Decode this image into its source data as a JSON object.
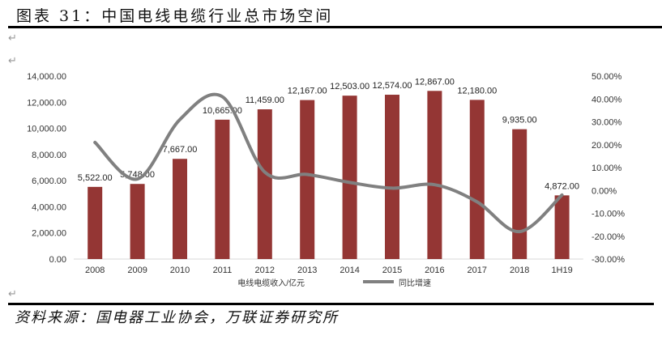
{
  "title": "图表 31：中国电线电缆行业总市场空间",
  "source": "资料来源：国电器工业协会，万联证券研究所",
  "chart_data": {
    "type": "bar+line",
    "categories": [
      "2008",
      "2009",
      "2010",
      "2011",
      "2012",
      "2013",
      "2014",
      "2015",
      "2016",
      "2017",
      "2018",
      "1H19"
    ],
    "series": [
      {
        "name": "电线电缆收入/亿元",
        "type": "bar",
        "axis": "left",
        "color": "#943634",
        "values": [
          5522,
          5748,
          7667,
          10665,
          11459,
          12167,
          12503,
          12574,
          12867,
          12180,
          9935,
          4872
        ],
        "labels": [
          "5,522.00",
          "5,748.00",
          "7,667.00",
          "10,665.00",
          "11,459.00",
          "12,167.00",
          "12,503.00",
          "12,574.00",
          "12,867.00",
          "12,180.00",
          "9,935.00",
          "4,872.00"
        ]
      },
      {
        "name": "同比增速",
        "type": "line",
        "axis": "right",
        "color": "#808080",
        "values": [
          21,
          5,
          31,
          41,
          8,
          7,
          3.5,
          1,
          2.5,
          -5,
          -18,
          -2
        ]
      }
    ],
    "yleft": {
      "range": [
        0,
        14000
      ],
      "ticks": [
        "0.00",
        "2,000.00",
        "4,000.00",
        "6,000.00",
        "8,000.00",
        "10,000.00",
        "12,000.00",
        "14,000.00"
      ]
    },
    "yright": {
      "range": [
        -30,
        50
      ],
      "ticks": [
        "-30.00%",
        "-20.00%",
        "-10.00%",
        "0.00%",
        "10.00%",
        "20.00%",
        "30.00%",
        "40.00%",
        "50.00%"
      ]
    },
    "legend_position": "bottom"
  }
}
